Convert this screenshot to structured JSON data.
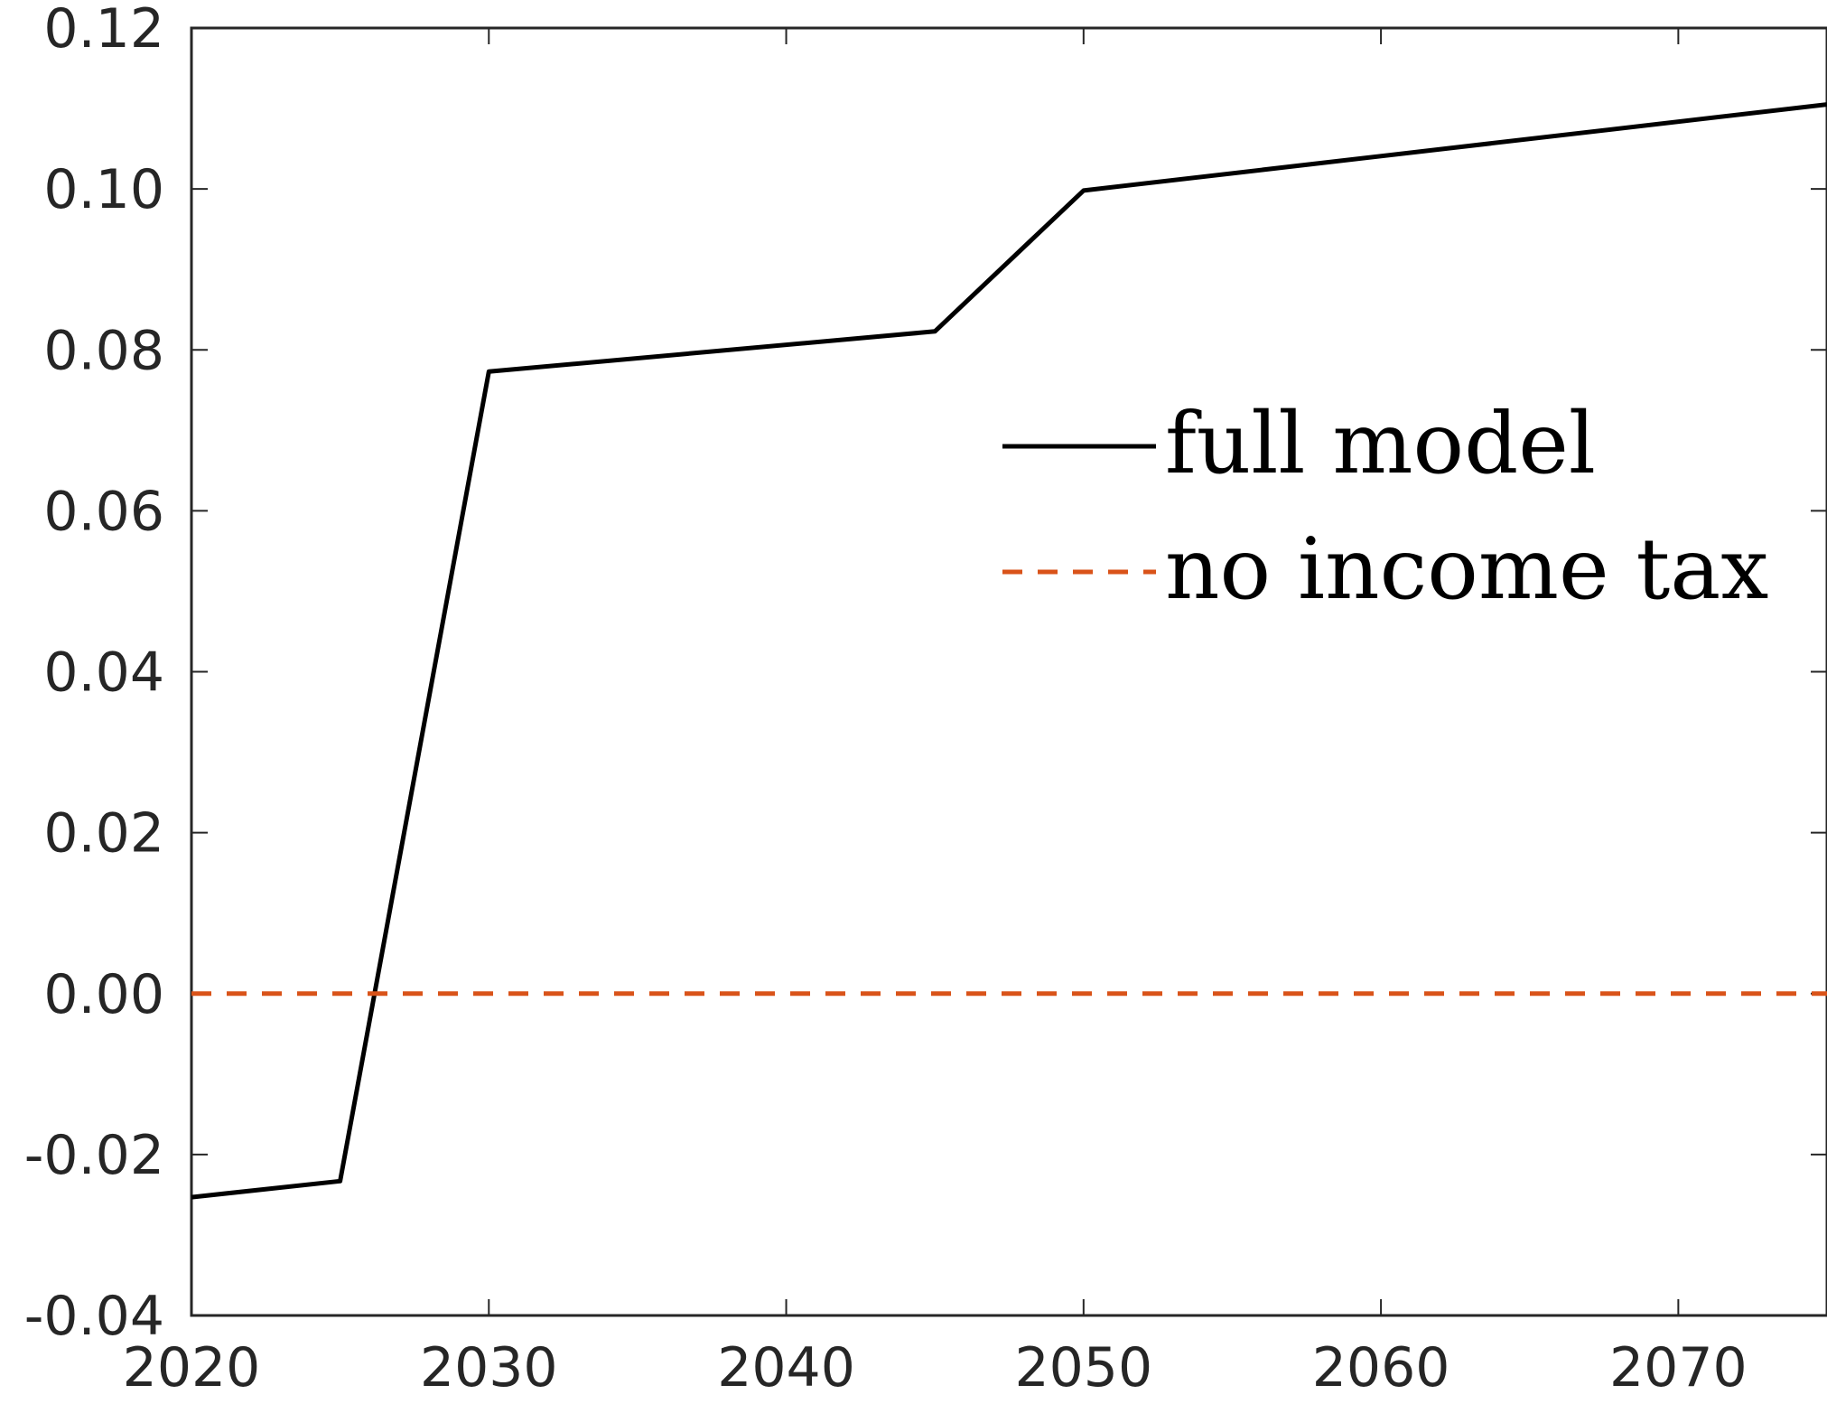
{
  "chart_data": {
    "type": "line",
    "title": "",
    "xlabel": "",
    "ylabel": "",
    "xlim": [
      2020,
      2075
    ],
    "ylim": [
      -0.04,
      0.12
    ],
    "x_ticks": [
      2020,
      2030,
      2040,
      2050,
      2060,
      2070
    ],
    "x_tick_labels": [
      "2020",
      "2030",
      "2040",
      "2050",
      "2060",
      "2070"
    ],
    "y_ticks": [
      -0.04,
      -0.02,
      0.0,
      0.02,
      0.04,
      0.06,
      0.08,
      0.1,
      0.12
    ],
    "y_tick_labels": [
      "-0.04",
      "-0.02",
      "0.00",
      "0.02",
      "0.04",
      "0.06",
      "0.08",
      "0.10",
      "0.12"
    ],
    "grid": false,
    "legend": "right",
    "series": [
      {
        "name": "full model",
        "color": "#000000",
        "line_style": "solid",
        "x": [
          2020,
          2025,
          2030,
          2045,
          2050,
          2075
        ],
        "y": [
          -0.0253,
          -0.0233,
          0.0773,
          0.0823,
          0.0998,
          0.1105
        ]
      },
      {
        "name": "no income tax",
        "color": "#D95319",
        "line_style": "dashed",
        "x": [
          2020,
          2075
        ],
        "y": [
          0.0,
          0.0
        ]
      }
    ]
  }
}
